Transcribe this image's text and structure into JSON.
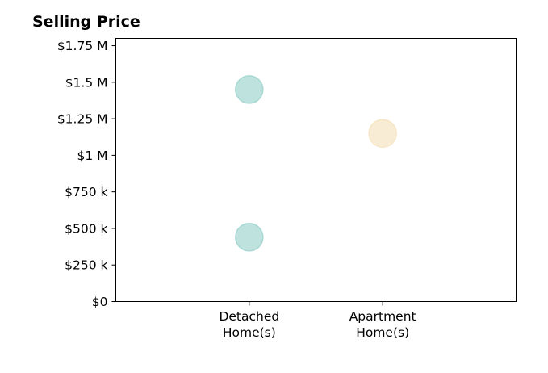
{
  "chart_data": {
    "type": "scatter",
    "title": "Selling Price",
    "xlabel": "",
    "ylabel": "",
    "categories": [
      "Detached\nHome(s)",
      "Apartment\nHome(s)"
    ],
    "y_tick_values": [
      0,
      250000,
      500000,
      750000,
      1000000,
      1250000,
      1500000,
      1750000
    ],
    "y_tick_labels": [
      "$0",
      "$250 k",
      "$500 k",
      "$750 k",
      "$1 M",
      "$1.25 M",
      "$1.5 M",
      "$1.75 M"
    ],
    "ylim": [
      0,
      1800000
    ],
    "x_range": [
      -1,
      2
    ],
    "grid": false,
    "series": [
      {
        "category": "Detached\nHome(s)",
        "values": [
          1450000,
          440000
        ],
        "color": "#a8d8d3"
      },
      {
        "category": "Apartment\nHome(s)",
        "values": [
          1150000
        ],
        "color": "#f6e6c5"
      }
    ]
  }
}
